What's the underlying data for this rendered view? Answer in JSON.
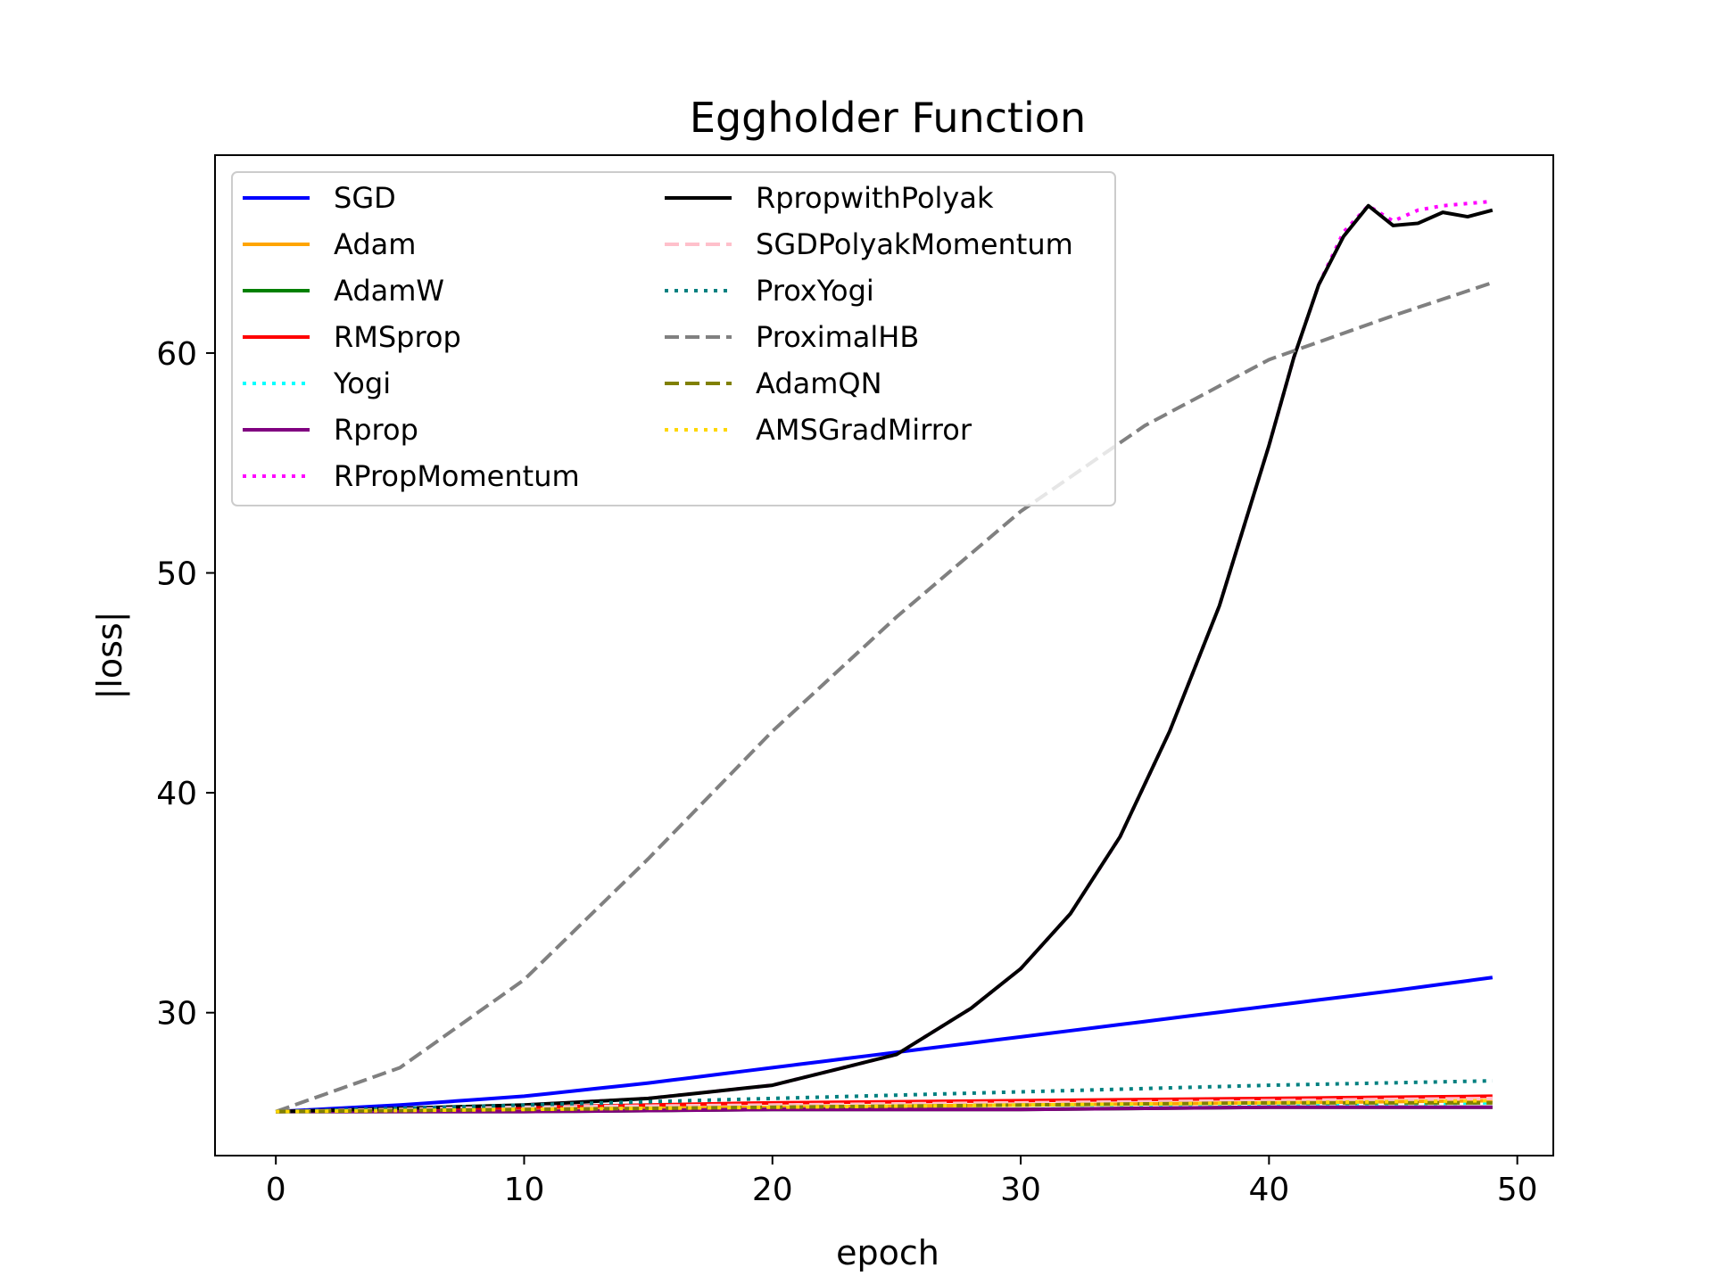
{
  "chart_data": {
    "type": "line",
    "title": "Eggholder Function",
    "xlabel": "epoch",
    "ylabel": "|loss|",
    "xlim": [
      -2.45,
      51.45
    ],
    "ylim": [
      23.5,
      69.0
    ],
    "xticks": [
      0,
      10,
      20,
      30,
      40,
      50
    ],
    "yticks": [
      30,
      40,
      50,
      60
    ],
    "grid": false,
    "legend": {
      "placement": "upper-left",
      "columns": 2
    },
    "x_range": [
      0,
      49
    ],
    "series": [
      {
        "name": "SGD",
        "color": "#0000ff",
        "dash": "solid",
        "points": [
          [
            0,
            25.5
          ],
          [
            5,
            25.8
          ],
          [
            10,
            26.2
          ],
          [
            15,
            26.8
          ],
          [
            20,
            27.5
          ],
          [
            25,
            28.2
          ],
          [
            30,
            28.9
          ],
          [
            35,
            29.6
          ],
          [
            40,
            30.3
          ],
          [
            45,
            31.0
          ],
          [
            49,
            31.6
          ]
        ]
      },
      {
        "name": "Adam",
        "color": "#ffa500",
        "dash": "solid",
        "points": [
          [
            0,
            25.5
          ],
          [
            10,
            25.6
          ],
          [
            20,
            25.7
          ],
          [
            30,
            25.8
          ],
          [
            40,
            25.9
          ],
          [
            49,
            26.0
          ]
        ]
      },
      {
        "name": "AdamW",
        "color": "#008000",
        "dash": "solid",
        "points": [
          [
            0,
            25.5
          ],
          [
            10,
            25.5
          ],
          [
            20,
            25.6
          ],
          [
            30,
            25.6
          ],
          [
            40,
            25.7
          ],
          [
            49,
            25.7
          ]
        ]
      },
      {
        "name": "RMSprop",
        "color": "#ff0000",
        "dash": "solid",
        "points": [
          [
            0,
            25.5
          ],
          [
            10,
            25.7
          ],
          [
            20,
            25.9
          ],
          [
            30,
            26.0
          ],
          [
            40,
            26.1
          ],
          [
            49,
            26.2
          ]
        ]
      },
      {
        "name": "Yogi",
        "color": "#00ffff",
        "dash": "dotted",
        "points": [
          [
            0,
            25.5
          ],
          [
            10,
            25.6
          ],
          [
            20,
            25.7
          ],
          [
            30,
            25.8
          ],
          [
            40,
            25.8
          ],
          [
            49,
            25.9
          ]
        ]
      },
      {
        "name": "Rprop",
        "color": "#800080",
        "dash": "solid",
        "points": [
          [
            0,
            25.5
          ],
          [
            10,
            25.5
          ],
          [
            20,
            25.6
          ],
          [
            30,
            25.6
          ],
          [
            40,
            25.7
          ],
          [
            49,
            25.7
          ]
        ]
      },
      {
        "name": "RPropMomentum",
        "color": "#ff00ff",
        "dash": "dotted",
        "points": [
          [
            0,
            25.5
          ],
          [
            10,
            25.8
          ],
          [
            15,
            26.1
          ],
          [
            20,
            26.7
          ],
          [
            25,
            28.1
          ],
          [
            28,
            30.2
          ],
          [
            30,
            32.0
          ],
          [
            32,
            34.5
          ],
          [
            34,
            38.0
          ],
          [
            36,
            42.8
          ],
          [
            38,
            48.5
          ],
          [
            40,
            55.8
          ],
          [
            41,
            59.8
          ],
          [
            42,
            63.1
          ],
          [
            43,
            65.5
          ],
          [
            44,
            66.7
          ],
          [
            45,
            66.0
          ],
          [
            46,
            66.5
          ],
          [
            47,
            66.7
          ],
          [
            48,
            66.8
          ],
          [
            49,
            66.9
          ]
        ]
      },
      {
        "name": "RpropwithPolyak",
        "color": "#000000",
        "dash": "solid",
        "points": [
          [
            0,
            25.5
          ],
          [
            10,
            25.8
          ],
          [
            15,
            26.1
          ],
          [
            20,
            26.7
          ],
          [
            25,
            28.1
          ],
          [
            28,
            30.2
          ],
          [
            30,
            32.0
          ],
          [
            32,
            34.5
          ],
          [
            34,
            38.0
          ],
          [
            36,
            42.8
          ],
          [
            38,
            48.5
          ],
          [
            40,
            55.8
          ],
          [
            41,
            59.8
          ],
          [
            42,
            63.1
          ],
          [
            43,
            65.3
          ],
          [
            44,
            66.7
          ],
          [
            45,
            65.8
          ],
          [
            46,
            65.9
          ],
          [
            47,
            66.4
          ],
          [
            48,
            66.2
          ],
          [
            49,
            66.5
          ]
        ]
      },
      {
        "name": "SGDPolyakMomentum",
        "color": "#ffc0cb",
        "dash": "dashed",
        "points": [
          [
            0,
            25.5
          ],
          [
            10,
            25.7
          ],
          [
            20,
            25.8
          ],
          [
            30,
            25.9
          ],
          [
            40,
            26.0
          ],
          [
            49,
            26.1
          ]
        ]
      },
      {
        "name": "ProxYogi",
        "color": "#008080",
        "dash": "dotted",
        "points": [
          [
            0,
            25.5
          ],
          [
            10,
            25.8
          ],
          [
            20,
            26.1
          ],
          [
            30,
            26.4
          ],
          [
            40,
            26.7
          ],
          [
            49,
            26.9
          ]
        ]
      },
      {
        "name": "ProximalHB",
        "color": "#808080",
        "dash": "dashed",
        "points": [
          [
            0,
            25.5
          ],
          [
            5,
            27.5
          ],
          [
            10,
            31.5
          ],
          [
            15,
            37.0
          ],
          [
            20,
            42.8
          ],
          [
            25,
            48.0
          ],
          [
            30,
            52.8
          ],
          [
            35,
            56.7
          ],
          [
            40,
            59.7
          ],
          [
            45,
            61.7
          ],
          [
            49,
            63.2
          ]
        ]
      },
      {
        "name": "AdamQN",
        "color": "#808000",
        "dash": "dashed",
        "points": [
          [
            0,
            25.5
          ],
          [
            10,
            25.6
          ],
          [
            20,
            25.7
          ],
          [
            30,
            25.8
          ],
          [
            40,
            25.9
          ],
          [
            49,
            25.9
          ]
        ]
      },
      {
        "name": "AMSGradMirror",
        "color": "#ffd700",
        "dash": "dotted",
        "points": [
          [
            0,
            25.5
          ],
          [
            10,
            25.6
          ],
          [
            20,
            25.7
          ],
          [
            30,
            25.8
          ],
          [
            40,
            25.9
          ],
          [
            49,
            26.0
          ]
        ]
      }
    ]
  }
}
